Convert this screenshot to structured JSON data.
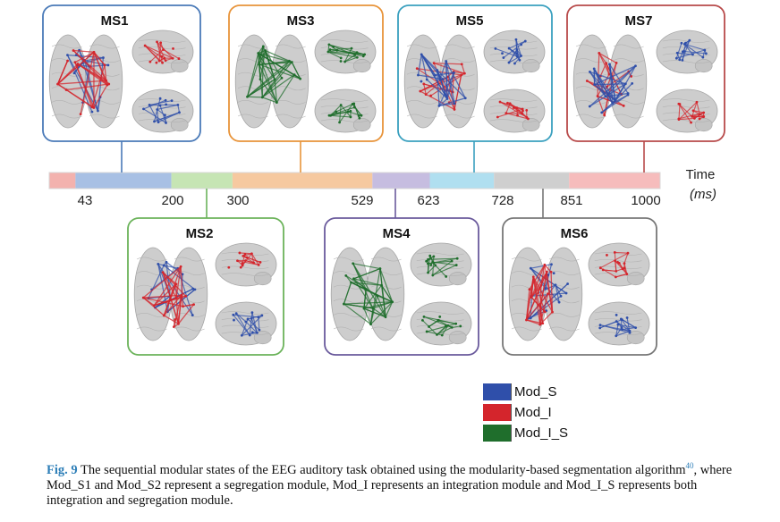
{
  "states": [
    {
      "id": "ms1",
      "label": "MS1",
      "color": "#4a7ab8",
      "modules": [
        "Mod_S",
        "Mod_I"
      ],
      "dominant": "Mod_I"
    },
    {
      "id": "ms2",
      "label": "MS2",
      "color": "#6bb35a",
      "modules": [
        "Mod_S",
        "Mod_I"
      ],
      "dominant": "Mod_I"
    },
    {
      "id": "ms3",
      "label": "MS3",
      "color": "#e8943a",
      "modules": [
        "Mod_I_S"
      ],
      "dominant": "Mod_I_S"
    },
    {
      "id": "ms4",
      "label": "MS4",
      "color": "#6a5a9c",
      "modules": [
        "Mod_I_S"
      ],
      "dominant": "Mod_I_S"
    },
    {
      "id": "ms5",
      "label": "MS5",
      "color": "#3aa0bf",
      "modules": [
        "Mod_S",
        "Mod_I"
      ],
      "dominant": "Mod_S"
    },
    {
      "id": "ms6",
      "label": "MS6",
      "color": "#777777",
      "modules": [
        "Mod_I",
        "Mod_S"
      ],
      "dominant": "Mod_I"
    },
    {
      "id": "ms7",
      "label": "MS7",
      "color": "#b84a4a",
      "modules": [
        "Mod_S",
        "Mod_I"
      ],
      "dominant": "Mod_S"
    }
  ],
  "timeline": {
    "unit_label": "Time",
    "unit": "(ms)",
    "ticks": [
      "43",
      "200",
      "300",
      "529",
      "623",
      "728",
      "851",
      "1000"
    ],
    "segments": [
      {
        "start": 0,
        "end": 43,
        "color": "#f3b2ae"
      },
      {
        "start": 43,
        "end": 200,
        "color": "#a8c0e4"
      },
      {
        "start": 200,
        "end": 300,
        "color": "#c6e5b4"
      },
      {
        "start": 300,
        "end": 529,
        "color": "#f6c9a0"
      },
      {
        "start": 529,
        "end": 623,
        "color": "#c6bde0"
      },
      {
        "start": 623,
        "end": 728,
        "color": "#b0dff0"
      },
      {
        "start": 728,
        "end": 851,
        "color": "#cfcfcf"
      },
      {
        "start": 851,
        "end": 1000,
        "color": "#f6bcbc"
      }
    ]
  },
  "legend": [
    {
      "label": "Mod_S",
      "color": "#2f4faa"
    },
    {
      "label": "Mod_I",
      "color": "#d4252c"
    },
    {
      "label": "Mod_I_S",
      "color": "#1f6e2c"
    }
  ],
  "caption": {
    "fig_label": "Fig. 9",
    "text_part1": "  The sequential modular states of the EEG auditory task obtained using the modularity-based segmentation algorithm",
    "ref": "40",
    "text_part2": ", where Mod_S1 and Mod_S2 represent a segregation module, Mod_I represents an integration module and Mod_I_S represents both integration and segregation module."
  }
}
